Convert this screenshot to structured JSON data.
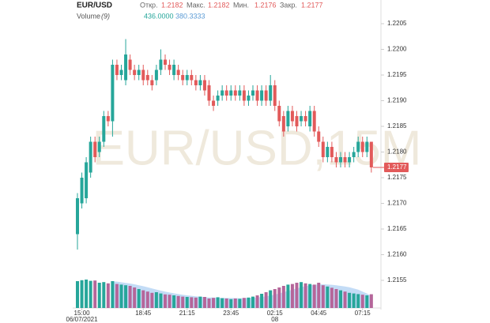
{
  "chart_data": {
    "type": "candlestick",
    "symbol": "EUR/USD",
    "watermark": "EUR/USD,15M",
    "ohlc_legend": [
      {
        "name": "Откр.",
        "value": 1.2182
      },
      {
        "name": "Макс.",
        "value": 1.2182
      },
      {
        "name": "Мин.",
        "value": 1.2176
      },
      {
        "name": "Закр.",
        "value": 1.2177
      }
    ],
    "volume_legend": {
      "name": "Volume",
      "period": "(9)",
      "values": [
        "436.0000",
        "380.3333"
      ]
    },
    "last_price": 1.2177,
    "up_color": "#26a69a",
    "down_color": "#e25a5a",
    "volume_up_color": "#26a69a",
    "volume_down_color": "#b5669a",
    "ma_color": "#5b9bd5",
    "categories": [
      null,
      "15:00",
      null,
      null,
      null,
      null,
      null,
      null,
      null,
      null,
      null,
      null,
      null,
      null,
      null,
      "18:45",
      null,
      null,
      null,
      null,
      null,
      null,
      null,
      null,
      null,
      "21:15",
      null,
      null,
      null,
      null,
      null,
      null,
      null,
      null,
      null,
      "23:45",
      null,
      null,
      null,
      null,
      null,
      null,
      null,
      null,
      null,
      "02:15",
      null,
      null,
      null,
      null,
      null,
      null,
      null,
      null,
      null,
      "04:45",
      null,
      null,
      null,
      null,
      null,
      null,
      null,
      null,
      null,
      "07:15",
      null,
      null
    ],
    "dates": [
      null,
      "06/07/2021",
      null,
      null,
      null,
      null,
      null,
      null,
      null,
      null,
      null,
      null,
      null,
      null,
      null,
      null,
      null,
      null,
      null,
      null,
      null,
      null,
      null,
      null,
      null,
      null,
      null,
      null,
      null,
      null,
      null,
      null,
      null,
      null,
      null,
      null,
      null,
      null,
      null,
      null,
      null,
      null,
      null,
      null,
      null,
      "08",
      null,
      null,
      null,
      null,
      null,
      null,
      null,
      null,
      null,
      null,
      null,
      null,
      null,
      null,
      null,
      null,
      null,
      null,
      null,
      null,
      null,
      null
    ],
    "open": [
      1.2164,
      1.217,
      1.2171,
      1.2176,
      1.2182,
      1.218,
      1.2182,
      1.2187,
      1.2186,
      1.2197,
      1.2195,
      1.2194,
      1.2198,
      1.2196,
      1.2195,
      1.2196,
      1.2195,
      1.2194,
      1.2194,
      1.2196,
      1.2198,
      1.2197,
      1.2195,
      1.2196,
      1.2195,
      1.2194,
      1.2195,
      1.2194,
      1.2193,
      1.2194,
      1.2193,
      1.219,
      1.219,
      1.2191,
      1.2192,
      1.2191,
      1.2192,
      1.2191,
      1.2192,
      1.219,
      1.2191,
      1.2192,
      1.219,
      1.2192,
      1.219,
      1.2193,
      1.2189,
      1.2187,
      1.2185,
      1.2188,
      1.2187,
      1.2186,
      1.2187,
      1.2185,
      1.2188,
      1.2184,
      1.2182,
      1.2179,
      1.2181,
      1.2179,
      1.2178,
      1.2179,
      1.2178,
      1.2179,
      1.218,
      1.2182,
      1.218,
      1.2182
    ],
    "high": [
      1.2172,
      1.2176,
      1.2179,
      1.2183,
      1.2183,
      1.2183,
      1.2188,
      1.2188,
      1.2198,
      1.2198,
      1.2197,
      1.2202,
      1.2199,
      1.2197,
      1.2197,
      1.2197,
      1.2196,
      1.2195,
      1.2197,
      1.22,
      1.2199,
      1.2198,
      1.2198,
      1.2197,
      1.2196,
      1.2196,
      1.2196,
      1.2195,
      1.2195,
      1.2195,
      1.2194,
      1.2191,
      1.2192,
      1.2193,
      1.2193,
      1.2193,
      1.2193,
      1.2193,
      1.2193,
      1.2192,
      1.2193,
      1.2193,
      1.2193,
      1.2193,
      1.2195,
      1.2194,
      1.219,
      1.2188,
      1.2189,
      1.2189,
      1.2188,
      1.2188,
      1.2188,
      1.2189,
      1.2189,
      1.2185,
      1.2183,
      1.2182,
      1.2182,
      1.218,
      1.218,
      1.218,
      1.218,
      1.2181,
      1.2183,
      1.2183,
      1.2183,
      1.2182
    ],
    "low": [
      1.2161,
      1.2169,
      1.217,
      1.2175,
      1.2178,
      1.2179,
      1.2181,
      1.2185,
      1.2183,
      1.2194,
      1.2194,
      1.2193,
      1.2195,
      1.2194,
      1.2194,
      1.2193,
      1.2193,
      1.2192,
      1.2193,
      1.2195,
      1.2196,
      1.2195,
      1.2194,
      1.2194,
      1.2193,
      1.2193,
      1.2193,
      1.2192,
      1.2192,
      1.2191,
      1.2189,
      1.2188,
      1.2189,
      1.219,
      1.219,
      1.219,
      1.219,
      1.219,
      1.2189,
      1.2189,
      1.219,
      1.2189,
      1.2189,
      1.2189,
      1.2189,
      1.2188,
      1.2185,
      1.2183,
      1.2184,
      1.2185,
      1.2184,
      1.2185,
      1.2185,
      1.2184,
      1.2183,
      1.2181,
      1.2178,
      1.2178,
      1.2178,
      1.2177,
      1.2177,
      1.2177,
      1.2177,
      1.2178,
      1.2179,
      1.2179,
      1.2179,
      1.2176
    ],
    "close": [
      1.2171,
      1.2175,
      1.2178,
      1.2182,
      1.2179,
      1.2182,
      1.2187,
      1.2186,
      1.2197,
      1.2195,
      1.2196,
      1.2199,
      1.2196,
      1.2195,
      1.2196,
      1.2194,
      1.2194,
      1.2193,
      1.2196,
      1.2198,
      1.2197,
      1.2196,
      1.2197,
      1.2195,
      1.2194,
      1.2195,
      1.2194,
      1.2193,
      1.2194,
      1.2192,
      1.219,
      1.2189,
      1.2191,
      1.2192,
      1.2191,
      1.2192,
      1.2191,
      1.2192,
      1.219,
      1.2191,
      1.2192,
      1.219,
      1.2192,
      1.219,
      1.2193,
      1.2189,
      1.2186,
      1.2184,
      1.2188,
      1.2186,
      1.2185,
      1.2187,
      1.2186,
      1.2188,
      1.2184,
      1.2182,
      1.2179,
      1.2181,
      1.2179,
      1.2178,
      1.2179,
      1.2178,
      1.2179,
      1.218,
      1.2182,
      1.218,
      1.2182,
      1.2177
    ],
    "volume": [
      850,
      880,
      900,
      860,
      870,
      800,
      820,
      780,
      850,
      760,
      740,
      720,
      700,
      650,
      600,
      560,
      520,
      480,
      500,
      460,
      430,
      420,
      400,
      380,
      360,
      350,
      340,
      330,
      360,
      350,
      300,
      320,
      340,
      310,
      300,
      280,
      300,
      290,
      320,
      330,
      360,
      400,
      450,
      500,
      560,
      600,
      650,
      700,
      740,
      760,
      800,
      820,
      780,
      760,
      740,
      800,
      720,
      680,
      640,
      600,
      560,
      520,
      480,
      460,
      440,
      420,
      400,
      436
    ],
    "volume_ma": [
      null,
      null,
      null,
      null,
      null,
      null,
      null,
      null,
      845,
      835,
      815,
      795,
      775,
      750,
      720,
      690,
      655,
      620,
      585,
      550,
      520,
      490,
      465,
      440,
      420,
      400,
      385,
      370,
      355,
      345,
      335,
      330,
      325,
      320,
      318,
      315,
      313,
      310,
      312,
      318,
      325,
      335,
      350,
      370,
      395,
      425,
      460,
      500,
      540,
      580,
      620,
      660,
      690,
      715,
      735,
      745,
      750,
      745,
      735,
      720,
      700,
      680,
      655,
      620,
      580,
      520,
      460,
      380.3333
    ],
    "ylim": [
      1.21505,
      1.22065
    ],
    "yticks": [
      {
        "value": 1.2155,
        "label": "1.2155"
      },
      {
        "value": 1.216,
        "label": "1.2160"
      },
      {
        "value": 1.2165,
        "label": "1.2165"
      },
      {
        "value": 1.217,
        "label": "1.2170"
      },
      {
        "value": 1.2175,
        "label": "1.2175"
      },
      {
        "value": 1.218,
        "label": "1.2180"
      },
      {
        "value": 1.2185,
        "label": "1.2185"
      },
      {
        "value": 1.219,
        "label": "1.2190"
      },
      {
        "value": 1.2195,
        "label": "1.2195"
      },
      {
        "value": 1.22,
        "label": "1.2200"
      },
      {
        "value": 1.2205,
        "label": "1.2205"
      }
    ],
    "volume_ylim": [
      0,
      1000
    ]
  }
}
